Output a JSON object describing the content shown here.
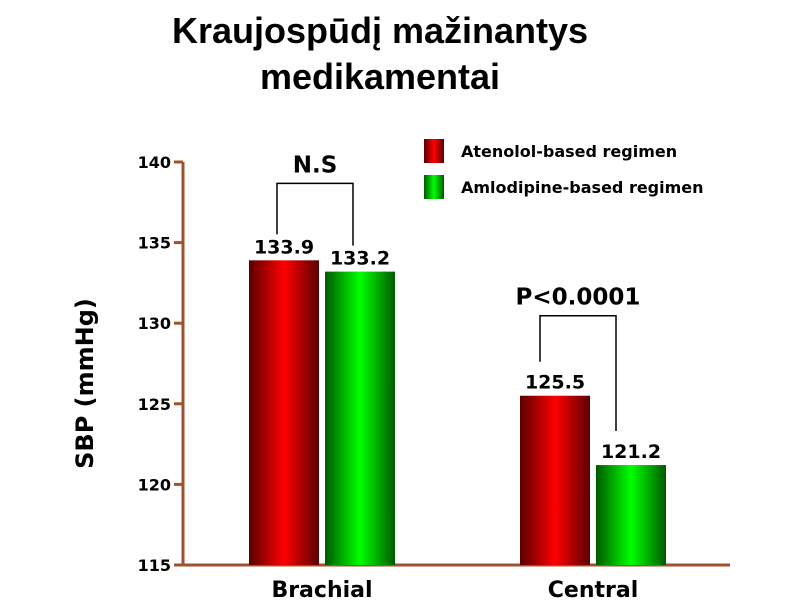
{
  "title": {
    "line1": "Kraujospūdį mažinantys",
    "line2": "medikamentai"
  },
  "chart_data": {
    "type": "bar",
    "title": "",
    "ylabel": "SBP (mmHg)",
    "xlabel": "",
    "ylim": [
      115,
      140
    ],
    "yticks": [
      115,
      120,
      125,
      130,
      135,
      140
    ],
    "grid": false,
    "legend_position": "top-right",
    "categories": [
      "Brachial",
      "Central"
    ],
    "series": [
      {
        "name": "Atenolol-based regimen",
        "color": "#ff0000",
        "values": [
          133.9,
          125.5
        ],
        "data_labels": [
          "133.9",
          "125.5"
        ]
      },
      {
        "name": "Amlodipine-based regimen",
        "color": "#00ee00",
        "values": [
          133.2,
          121.2
        ],
        "data_labels": [
          "133.2",
          "121.2"
        ]
      }
    ],
    "annotations": [
      {
        "category_index": 0,
        "text": "N.S"
      },
      {
        "category_index": 1,
        "text": "P<0.0001"
      }
    ],
    "colors": {
      "axis": "#a0522d",
      "bracket": "#000000"
    }
  }
}
